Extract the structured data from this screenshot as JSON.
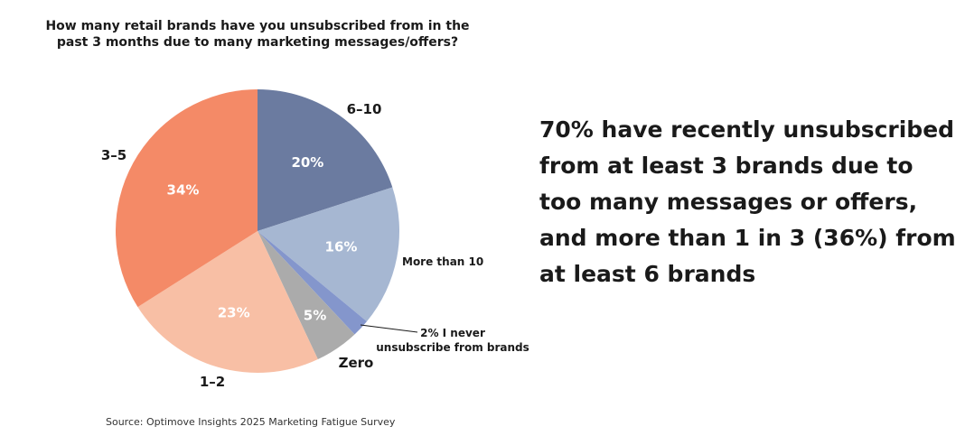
{
  "chart_data": {
    "type": "pie",
    "title_lines": [
      "How many retail brands have you unsubscribed from in the",
      "past 3 months due to many marketing messages/offers?"
    ],
    "slices": [
      {
        "category": "6–10",
        "value": 20,
        "label": "20%",
        "color": "#6B7BA0"
      },
      {
        "category": "More than 10",
        "value": 16,
        "label": "16%",
        "color": "#A6B7D2"
      },
      {
        "category": "2% I never unsubscribe from brands",
        "value": 2,
        "label": "",
        "color": "#8496CC"
      },
      {
        "category": "Zero",
        "value": 5,
        "label": "5%",
        "color": "#ABABAB"
      },
      {
        "category": "1–2",
        "value": 23,
        "label": "23%",
        "color": "#F8BFA5"
      },
      {
        "category": "3–5",
        "value": 34,
        "label": "34%",
        "color": "#F48A67"
      }
    ],
    "category_labels": {
      "six_to_ten": "6–10",
      "more_than_ten": "More than 10",
      "never_line1": "2% I never",
      "never_line2": "unsubscribe from brands",
      "zero": "Zero",
      "one_to_two": "1–2",
      "three_to_five": "3–5"
    }
  },
  "headline_lines": [
    "70% have recently unsubscribed",
    "from at least 3 brands due to",
    "too many messages or offers,",
    "and more than 1 in 3 (36%) from",
    "at least 6 brands"
  ],
  "source": "Source: Optimove Insights 2025 Marketing Fatigue Survey"
}
